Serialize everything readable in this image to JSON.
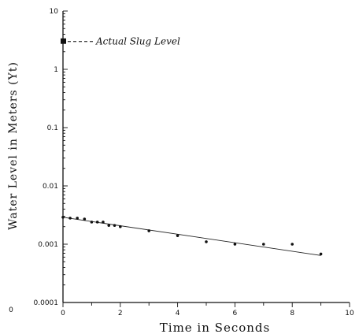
{
  "chart_data": {
    "type": "scatter",
    "xlabel": "Time in Seconds",
    "ylabel": "Water Level in Meters (Yt)",
    "xlim": [
      0,
      10
    ],
    "ylim": [
      0.0001,
      10
    ],
    "yscale": "log",
    "x_ticks": [
      "0",
      "2",
      "4",
      "6",
      "8",
      "10"
    ],
    "y_ticks": [
      "0.0001",
      "0.001",
      "0.01",
      "0.1",
      "1",
      "10"
    ],
    "x_origin_label": "0",
    "grid": false,
    "series": [
      {
        "x": [
          0,
          0.25,
          0.5,
          0.75,
          1.0,
          1.2,
          1.4,
          1.6,
          1.8,
          2.0,
          3.0,
          4.0,
          5.0,
          6.0,
          7.0,
          8.0,
          9.0
        ],
        "y": [
          0.0029,
          0.0028,
          0.0028,
          0.0027,
          0.0024,
          0.0024,
          0.0024,
          0.0021,
          0.0021,
          0.002,
          0.0017,
          0.0014,
          0.0011,
          0.001,
          0.001,
          0.001,
          0.00068
        ]
      }
    ],
    "fit_line": {
      "x": [
        0,
        9
      ],
      "y": [
        0.0029,
        0.00064
      ]
    },
    "actual_slug_level": {
      "x": 0,
      "y": 3.0,
      "label": "Actual Slug Level"
    }
  }
}
